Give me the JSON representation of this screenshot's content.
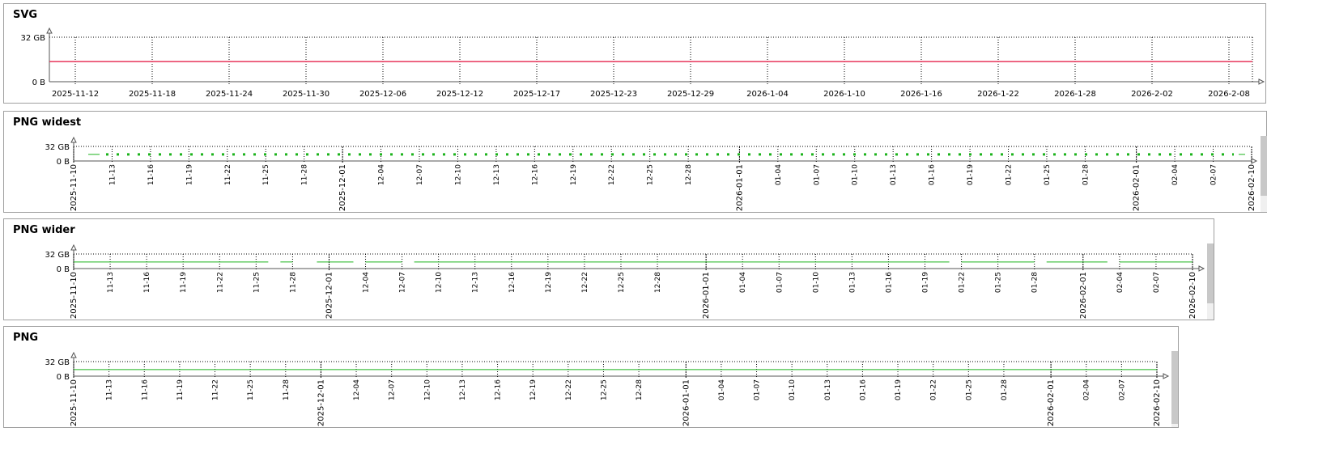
{
  "panels": [
    {
      "id": "svg",
      "title": "SVG"
    },
    {
      "id": "png-widest",
      "title": "PNG widest"
    },
    {
      "id": "png-wider",
      "title": "PNG wider"
    },
    {
      "id": "png",
      "title": "PNG"
    }
  ],
  "colors": {
    "svg_series": "#e8355a",
    "png_series": "#1cb31c",
    "grid": "#000000",
    "frame": "#a0a0a0"
  },
  "chart_data": [
    {
      "type": "line",
      "title": "SVG",
      "y_ticks": [
        "32 GB",
        "0 B"
      ],
      "x_ticks": [
        "2025-11-12",
        "2025-11-18",
        "2025-11-24",
        "2025-11-30",
        "2025-12-06",
        "2025-12-12",
        "2025-12-17",
        "2025-12-23",
        "2025-12-29",
        "2026-1-04",
        "2026-1-10",
        "2026-1-16",
        "2026-1-22",
        "2026-1-28",
        "2026-2-02",
        "2026-2-08"
      ],
      "ylim": [
        0,
        32
      ],
      "series": [
        {
          "x_range": [
            "2025-11-10",
            "2026-02-10"
          ],
          "value": 14.5
        }
      ]
    },
    {
      "type": "line",
      "title": "PNG widest",
      "y_ticks": [
        "32 GB",
        "0 B"
      ],
      "x_ticks": [
        "2025-11-10",
        "11-13",
        "11-16",
        "11-19",
        "11-22",
        "11-25",
        "11-28",
        "2025-12-01",
        "12-04",
        "12-07",
        "12-10",
        "12-13",
        "12-16",
        "12-19",
        "12-22",
        "12-25",
        "12-28",
        "2026-01-01",
        "01-04",
        "01-07",
        "01-10",
        "01-13",
        "01-16",
        "01-19",
        "01-22",
        "01-25",
        "01-28",
        "2026-02-01",
        "02-04",
        "02-07",
        "2026-02-10"
      ],
      "ylim": [
        0,
        32
      ],
      "series": [
        {
          "x_range": [
            "2025-11-10",
            "2026-02-10"
          ],
          "value": 14.5,
          "style": "dotted"
        }
      ]
    },
    {
      "type": "line",
      "title": "PNG wider",
      "y_ticks": [
        "32 GB",
        "0 B"
      ],
      "x_ticks": [
        "2025-11-10",
        "11-13",
        "11-16",
        "11-19",
        "11-22",
        "11-25",
        "11-28",
        "2025-12-01",
        "12-04",
        "12-07",
        "12-10",
        "12-13",
        "12-16",
        "12-19",
        "12-22",
        "12-25",
        "12-28",
        "2026-01-01",
        "01-04",
        "01-07",
        "01-10",
        "01-13",
        "01-16",
        "01-19",
        "01-22",
        "01-25",
        "01-28",
        "2026-02-01",
        "02-04",
        "02-07",
        "2026-02-10"
      ],
      "ylim": [
        0,
        32
      ],
      "series": [
        {
          "x_range": [
            "2025-11-10",
            "2026-02-10"
          ],
          "value": 14.5,
          "style": "gapped"
        }
      ]
    },
    {
      "type": "line",
      "title": "PNG",
      "y_ticks": [
        "32 GB",
        "0 B"
      ],
      "x_ticks": [
        "2025-11-10",
        "11-13",
        "11-16",
        "11-19",
        "11-22",
        "11-25",
        "11-28",
        "2025-12-01",
        "12-04",
        "12-07",
        "12-10",
        "12-13",
        "12-16",
        "12-19",
        "12-22",
        "12-25",
        "12-28",
        "2026-01-01",
        "01-04",
        "01-07",
        "01-10",
        "01-13",
        "01-16",
        "01-19",
        "01-22",
        "01-25",
        "01-28",
        "2026-02-01",
        "02-04",
        "02-07",
        "2026-02-10"
      ],
      "ylim": [
        0,
        32
      ],
      "series": [
        {
          "x_range": [
            "2025-11-10",
            "2026-02-10"
          ],
          "value": 14.5
        }
      ]
    }
  ]
}
